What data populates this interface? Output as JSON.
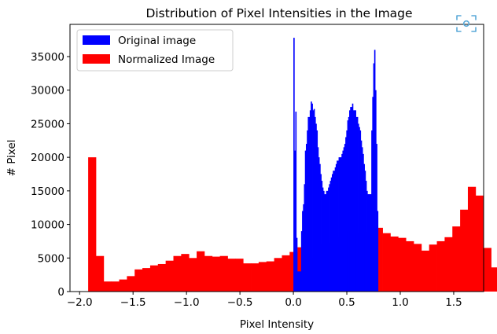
{
  "chart_data": {
    "type": "bar",
    "title": "Distribution of Pixel Intensities in the Image",
    "xlabel": "Pixel Intensity",
    "ylabel": "# Pixel",
    "xlim": [
      -2.09,
      1.78
    ],
    "ylim": [
      0,
      39800
    ],
    "x_ticks": [
      "−2.0",
      "−1.5",
      "−1.0",
      "−0.5",
      "0.0",
      "0.5",
      "1.0",
      "1.5"
    ],
    "x_tick_values": [
      -2.0,
      -1.5,
      -1.0,
      -0.5,
      0.0,
      0.5,
      1.0,
      1.5
    ],
    "y_ticks": [
      "0",
      "5000",
      "10000",
      "15000",
      "20000",
      "25000",
      "30000",
      "35000"
    ],
    "y_tick_values": [
      0,
      5000,
      10000,
      15000,
      20000,
      25000,
      30000,
      35000
    ],
    "legend_position": "top-left",
    "series": [
      {
        "name": "Original image",
        "color": "#0000ff",
        "bin_start": 0.0,
        "bin_width": 0.009,
        "values": [
          37800,
          21000,
          26800,
          8000,
          3000,
          3000,
          3000,
          3000,
          9000,
          12000,
          13000,
          16000,
          21000,
          22000,
          24000,
          26000,
          26000,
          27000,
          28300,
          28000,
          27000,
          27200,
          26000,
          25000,
          24000,
          21500,
          20000,
          19000,
          17500,
          16500,
          15500,
          15000,
          14500,
          14500,
          15000,
          15000,
          15500,
          16000,
          16500,
          17000,
          17500,
          18000,
          18000,
          18500,
          19000,
          19500,
          19500,
          20000,
          20000,
          20000,
          20500,
          21000,
          21500,
          22000,
          23000,
          24000,
          25500,
          26000,
          27000,
          27500,
          27500,
          28000,
          27000,
          27000,
          27000,
          26000,
          26000,
          25000,
          24500,
          24000,
          22500,
          21500,
          20500,
          19000,
          18000,
          16500,
          15000,
          14500,
          14500,
          14500,
          14500,
          24000,
          29000,
          34000,
          36000,
          30000,
          22000,
          12000
        ]
      },
      {
        "name": "Normalized Image",
        "color": "#ff0000",
        "bin_start": -1.92,
        "bin_width": 0.0725,
        "values": [
          20000,
          5300,
          1500,
          1500,
          1800,
          2300,
          3300,
          3500,
          3900,
          4100,
          4600,
          5300,
          5600,
          5000,
          6000,
          5300,
          5200,
          5300,
          4900,
          4900,
          4200,
          4200,
          4400,
          4500,
          5000,
          5400,
          5900,
          6600,
          5000,
          5000,
          7000,
          7200,
          8200,
          9000,
          8800,
          8900,
          8300,
          9500,
          8700,
          8200,
          8000,
          7500,
          7100,
          6100,
          7000,
          7500,
          8100,
          9700,
          12200,
          15600,
          14300,
          6500,
          3600,
          1800,
          1000,
          200,
          50
        ]
      }
    ]
  },
  "toolbar": {
    "scan_icon": "scan-icon"
  }
}
